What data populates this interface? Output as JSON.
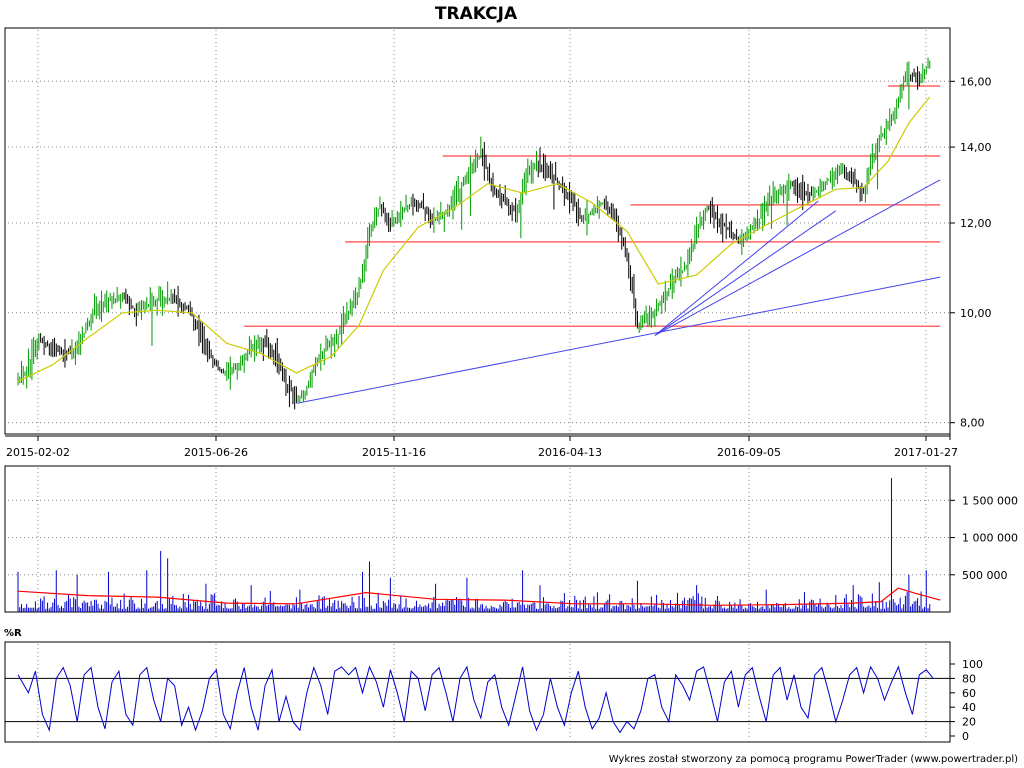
{
  "chart_data": [
    {
      "type": "line",
      "subtype": "price-bars-with-moving-average",
      "title": "TRAKCJA",
      "x_tick_labels": [
        "2015-02-02",
        "2015-06-26",
        "2015-11-16",
        "2016-04-13",
        "2016-09-05",
        "2017-01-27"
      ],
      "y_scale": "log",
      "y_ticks": [
        "8,00",
        "10,00",
        "12,00",
        "14,00",
        "16,00"
      ],
      "ylim": [
        7.85,
        17.4
      ],
      "grid": true,
      "price_path": [
        [
          0,
          8.75
        ],
        [
          5,
          8.9
        ],
        [
          12,
          9.45
        ],
        [
          22,
          9.3
        ],
        [
          30,
          9.2
        ],
        [
          38,
          9.6
        ],
        [
          45,
          10.1
        ],
        [
          52,
          10.25
        ],
        [
          60,
          10.35
        ],
        [
          68,
          10.0
        ],
        [
          78,
          10.25
        ],
        [
          88,
          10.3
        ],
        [
          98,
          10.05
        ],
        [
          106,
          9.55
        ],
        [
          112,
          9.05
        ],
        [
          118,
          8.85
        ],
        [
          126,
          8.95
        ],
        [
          134,
          9.3
        ],
        [
          140,
          9.4
        ],
        [
          148,
          9.2
        ],
        [
          154,
          8.65
        ],
        [
          160,
          8.4
        ],
        [
          164,
          8.45
        ],
        [
          170,
          8.95
        ],
        [
          176,
          9.3
        ],
        [
          182,
          9.4
        ],
        [
          188,
          9.9
        ],
        [
          194,
          10.3
        ],
        [
          198,
          10.8
        ],
        [
          202,
          11.8
        ],
        [
          208,
          12.45
        ],
        [
          214,
          11.9
        ],
        [
          220,
          12.3
        ],
        [
          226,
          12.5
        ],
        [
          232,
          12.4
        ],
        [
          238,
          12.1
        ],
        [
          244,
          12.2
        ],
        [
          252,
          12.7
        ],
        [
          260,
          13.35
        ],
        [
          266,
          13.8
        ],
        [
          272,
          13.0
        ],
        [
          278,
          12.6
        ],
        [
          286,
          12.25
        ],
        [
          292,
          13.2
        ],
        [
          298,
          13.6
        ],
        [
          304,
          13.3
        ],
        [
          310,
          13.05
        ],
        [
          318,
          12.6
        ],
        [
          324,
          12.05
        ],
        [
          330,
          12.3
        ],
        [
          336,
          12.5
        ],
        [
          342,
          12.25
        ],
        [
          348,
          11.5
        ],
        [
          352,
          10.7
        ],
        [
          356,
          9.75
        ],
        [
          360,
          9.95
        ],
        [
          366,
          10.05
        ],
        [
          372,
          10.35
        ],
        [
          378,
          10.8
        ],
        [
          384,
          10.95
        ],
        [
          390,
          11.75
        ],
        [
          396,
          12.4
        ],
        [
          402,
          12.1
        ],
        [
          408,
          11.85
        ],
        [
          414,
          11.6
        ],
        [
          420,
          11.8
        ],
        [
          426,
          12.1
        ],
        [
          432,
          12.65
        ],
        [
          438,
          12.8
        ],
        [
          444,
          13.0
        ],
        [
          450,
          12.75
        ],
        [
          456,
          12.7
        ],
        [
          462,
          12.95
        ],
        [
          468,
          13.2
        ],
        [
          474,
          13.35
        ],
        [
          480,
          13.05
        ],
        [
          486,
          12.75
        ],
        [
          490,
          13.5
        ],
        [
          494,
          14.1
        ],
        [
          498,
          14.5
        ],
        [
          504,
          15.0
        ],
        [
          508,
          15.9
        ],
        [
          512,
          16.2
        ],
        [
          518,
          16.1
        ],
        [
          524,
          16.6
        ]
      ],
      "moving_average_path": [
        [
          0,
          8.7
        ],
        [
          20,
          9.0
        ],
        [
          40,
          9.5
        ],
        [
          60,
          10.0
        ],
        [
          80,
          10.05
        ],
        [
          100,
          10.0
        ],
        [
          120,
          9.4
        ],
        [
          140,
          9.2
        ],
        [
          160,
          8.85
        ],
        [
          180,
          9.15
        ],
        [
          196,
          9.75
        ],
        [
          210,
          10.9
        ],
        [
          230,
          11.9
        ],
        [
          250,
          12.35
        ],
        [
          270,
          13.0
        ],
        [
          290,
          12.75
        ],
        [
          310,
          13.0
        ],
        [
          330,
          12.5
        ],
        [
          350,
          11.8
        ],
        [
          368,
          10.6
        ],
        [
          390,
          10.8
        ],
        [
          410,
          11.5
        ],
        [
          430,
          11.95
        ],
        [
          450,
          12.4
        ],
        [
          470,
          12.85
        ],
        [
          486,
          12.9
        ],
        [
          500,
          13.6
        ],
        [
          512,
          14.7
        ],
        [
          524,
          15.5
        ]
      ],
      "support_resistance_levels": [
        {
          "value": 13.75,
          "from_index": 244,
          "to_index": 530
        },
        {
          "value": 12.45,
          "from_index": 352,
          "to_index": 530
        },
        {
          "value": 11.55,
          "from_index": 188,
          "to_index": 530
        },
        {
          "value": 9.73,
          "from_index": 130,
          "to_index": 530
        },
        {
          "value": 15.85,
          "from_index": 500,
          "to_index": 530
        }
      ],
      "trend_lines": [
        {
          "from": [
            160,
            8.32
          ],
          "to": [
            530,
            10.75
          ]
        },
        {
          "from": [
            366,
            9.55
          ],
          "to": [
            530,
            13.1
          ]
        },
        {
          "from": [
            366,
            9.55
          ],
          "to": [
            460,
            12.55
          ]
        },
        {
          "from": [
            366,
            9.55
          ],
          "to": [
            470,
            12.3
          ]
        }
      ],
      "colors": {
        "up_bar": "#009900",
        "down_bar": "#000000",
        "moving_average": "#cccc00",
        "levels": "#ff6666",
        "trend_lines": "#4444ee",
        "grid": "#888888"
      }
    },
    {
      "type": "bar",
      "subtype": "volume",
      "y_ticks": [
        "500 000",
        "1 000 000",
        "1 500 000"
      ],
      "ylim": [
        0,
        1800000
      ],
      "spikes": [
        [
          0,
          540000
        ],
        [
          22,
          560000
        ],
        [
          34,
          500000
        ],
        [
          52,
          540000
        ],
        [
          74,
          560000
        ],
        [
          82,
          820000
        ],
        [
          86,
          720000
        ],
        [
          108,
          380000
        ],
        [
          134,
          360000
        ],
        [
          162,
          300000
        ],
        [
          198,
          540000
        ],
        [
          202,
          680000
        ],
        [
          214,
          460000
        ],
        [
          240,
          380000
        ],
        [
          258,
          460000
        ],
        [
          290,
          560000
        ],
        [
          300,
          360000
        ],
        [
          356,
          420000
        ],
        [
          390,
          360000
        ],
        [
          430,
          300000
        ],
        [
          480,
          360000
        ],
        [
          495,
          400000
        ],
        [
          502,
          1800000
        ],
        [
          512,
          500000
        ],
        [
          522,
          560000
        ]
      ],
      "moving_average_path": [
        [
          0,
          280000
        ],
        [
          40,
          220000
        ],
        [
          80,
          200000
        ],
        [
          120,
          120000
        ],
        [
          160,
          110000
        ],
        [
          200,
          260000
        ],
        [
          240,
          170000
        ],
        [
          280,
          160000
        ],
        [
          320,
          110000
        ],
        [
          360,
          110000
        ],
        [
          400,
          90000
        ],
        [
          440,
          100000
        ],
        [
          480,
          120000
        ],
        [
          496,
          140000
        ],
        [
          506,
          320000
        ],
        [
          516,
          250000
        ],
        [
          530,
          160000
        ]
      ],
      "colors": {
        "bars": "#0000cc",
        "moving_average": "#ff0000"
      }
    },
    {
      "type": "line",
      "subtype": "williams-percent-r",
      "title": "%R",
      "y_ticks": [
        "0",
        "20",
        "40",
        "60",
        "80",
        "100"
      ],
      "ylim": [
        0,
        100
      ],
      "reference_levels": [
        20,
        80
      ],
      "path": [
        [
          0,
          85
        ],
        [
          6,
          60
        ],
        [
          10,
          90
        ],
        [
          14,
          30
        ],
        [
          18,
          8
        ],
        [
          22,
          80
        ],
        [
          26,
          95
        ],
        [
          30,
          70
        ],
        [
          34,
          20
        ],
        [
          38,
          85
        ],
        [
          42,
          95
        ],
        [
          46,
          40
        ],
        [
          50,
          10
        ],
        [
          54,
          75
        ],
        [
          58,
          90
        ],
        [
          62,
          30
        ],
        [
          66,
          15
        ],
        [
          70,
          85
        ],
        [
          74,
          95
        ],
        [
          78,
          50
        ],
        [
          82,
          20
        ],
        [
          86,
          80
        ],
        [
          90,
          70
        ],
        [
          94,
          15
        ],
        [
          98,
          40
        ],
        [
          102,
          8
        ],
        [
          106,
          35
        ],
        [
          110,
          80
        ],
        [
          114,
          92
        ],
        [
          118,
          30
        ],
        [
          122,
          10
        ],
        [
          126,
          60
        ],
        [
          130,
          95
        ],
        [
          134,
          40
        ],
        [
          138,
          8
        ],
        [
          142,
          70
        ],
        [
          146,
          92
        ],
        [
          150,
          20
        ],
        [
          154,
          55
        ],
        [
          158,
          20
        ],
        [
          162,
          8
        ],
        [
          166,
          60
        ],
        [
          170,
          95
        ],
        [
          174,
          70
        ],
        [
          178,
          30
        ],
        [
          182,
          90
        ],
        [
          186,
          96
        ],
        [
          190,
          85
        ],
        [
          194,
          95
        ],
        [
          198,
          60
        ],
        [
          202,
          96
        ],
        [
          206,
          75
        ],
        [
          210,
          40
        ],
        [
          214,
          92
        ],
        [
          218,
          60
        ],
        [
          222,
          20
        ],
        [
          226,
          90
        ],
        [
          230,
          80
        ],
        [
          234,
          35
        ],
        [
          238,
          85
        ],
        [
          242,
          95
        ],
        [
          246,
          60
        ],
        [
          250,
          20
        ],
        [
          254,
          80
        ],
        [
          258,
          96
        ],
        [
          262,
          50
        ],
        [
          266,
          25
        ],
        [
          270,
          75
        ],
        [
          274,
          85
        ],
        [
          278,
          40
        ],
        [
          282,
          15
        ],
        [
          286,
          55
        ],
        [
          290,
          96
        ],
        [
          294,
          35
        ],
        [
          298,
          8
        ],
        [
          302,
          30
        ],
        [
          306,
          80
        ],
        [
          310,
          40
        ],
        [
          314,
          15
        ],
        [
          318,
          60
        ],
        [
          322,
          90
        ],
        [
          326,
          40
        ],
        [
          330,
          10
        ],
        [
          334,
          25
        ],
        [
          338,
          60
        ],
        [
          342,
          20
        ],
        [
          346,
          5
        ],
        [
          350,
          20
        ],
        [
          354,
          10
        ],
        [
          358,
          35
        ],
        [
          362,
          80
        ],
        [
          366,
          85
        ],
        [
          370,
          40
        ],
        [
          374,
          20
        ],
        [
          378,
          85
        ],
        [
          382,
          70
        ],
        [
          386,
          50
        ],
        [
          390,
          90
        ],
        [
          394,
          96
        ],
        [
          398,
          60
        ],
        [
          402,
          20
        ],
        [
          406,
          75
        ],
        [
          410,
          90
        ],
        [
          414,
          40
        ],
        [
          418,
          85
        ],
        [
          422,
          95
        ],
        [
          426,
          55
        ],
        [
          430,
          20
        ],
        [
          434,
          85
        ],
        [
          438,
          95
        ],
        [
          442,
          50
        ],
        [
          446,
          85
        ],
        [
          450,
          40
        ],
        [
          454,
          25
        ],
        [
          458,
          85
        ],
        [
          462,
          95
        ],
        [
          466,
          60
        ],
        [
          470,
          20
        ],
        [
          474,
          50
        ],
        [
          478,
          85
        ],
        [
          482,
          95
        ],
        [
          486,
          60
        ],
        [
          490,
          96
        ],
        [
          494,
          80
        ],
        [
          498,
          50
        ],
        [
          502,
          75
        ],
        [
          506,
          96
        ],
        [
          510,
          60
        ],
        [
          514,
          30
        ],
        [
          518,
          85
        ],
        [
          522,
          92
        ],
        [
          526,
          80
        ]
      ],
      "colors": {
        "line": "#0000cc",
        "reference": "#000000"
      }
    }
  ],
  "footer": {
    "credit": "Wykres został stworzony za pomocą programu PowerTrader (www.powertrader.pl)"
  }
}
